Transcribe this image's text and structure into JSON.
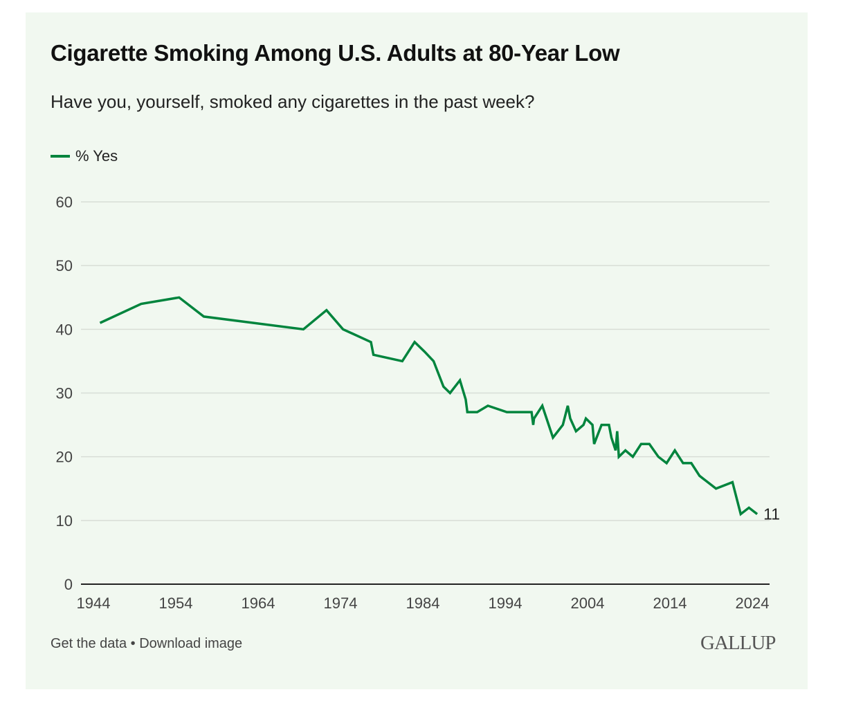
{
  "title": "Cigarette Smoking Among U.S. Adults at 80-Year Low",
  "subtitle": "Have you, yourself, smoked any cigarettes in the past week?",
  "footer": {
    "get_data": "Get the data",
    "separator": " • ",
    "download": "Download image"
  },
  "logo": "GALLUP",
  "chart_data": {
    "type": "line",
    "title": "Cigarette Smoking Among U.S. Adults at 80-Year Low",
    "xlabel": "",
    "ylabel": "",
    "xlim": [
      1944,
      2024
    ],
    "ylim": [
      0,
      60
    ],
    "x_ticks": [
      1944,
      1954,
      1964,
      1974,
      1984,
      1994,
      2004,
      2014,
      2024
    ],
    "y_ticks": [
      0,
      10,
      20,
      30,
      40,
      50,
      60
    ],
    "grid": true,
    "legend": {
      "position": "top-left",
      "entries": [
        "% Yes"
      ]
    },
    "color": "#00843d",
    "end_label": "11",
    "series": [
      {
        "name": "% Yes",
        "x": [
          1944.8,
          1949.8,
          1954.4,
          1957.4,
          1969.5,
          1972.3,
          1974.3,
          1977.7,
          1978,
          1981.5,
          1983,
          1984.2,
          1985.3,
          1986.5,
          1987.3,
          1988.5,
          1989.2,
          1989.4,
          1990.6,
          1991.9,
          1994.2,
          1997.2,
          1997.4,
          1997.5,
          1998.5,
          1999.8,
          2001,
          2001.6,
          2001.9,
          2002.6,
          2003.5,
          2003.8,
          2004.6,
          2004.8,
          2005.7,
          2006.6,
          2006.9,
          2007.4,
          2007.6,
          2007.8,
          2008.6,
          2009.5,
          2010.5,
          2011.5,
          2012.6,
          2013.6,
          2014.6,
          2015.6,
          2016.6,
          2017.6,
          2019.6,
          2021.6,
          2022.6,
          2023.6,
          2024.6
        ],
        "values": [
          41,
          44,
          45,
          42,
          40,
          43,
          40,
          38,
          36,
          35,
          38,
          36.5,
          35,
          31,
          30,
          32,
          29,
          27,
          27,
          28,
          27,
          27,
          25,
          26,
          28,
          23,
          25,
          28,
          26,
          24,
          25,
          26,
          25,
          22,
          25,
          25,
          23,
          21,
          24,
          20,
          21,
          20,
          22,
          22,
          20,
          19,
          21,
          19,
          19,
          17,
          15,
          16,
          11,
          12,
          11
        ]
      }
    ]
  }
}
